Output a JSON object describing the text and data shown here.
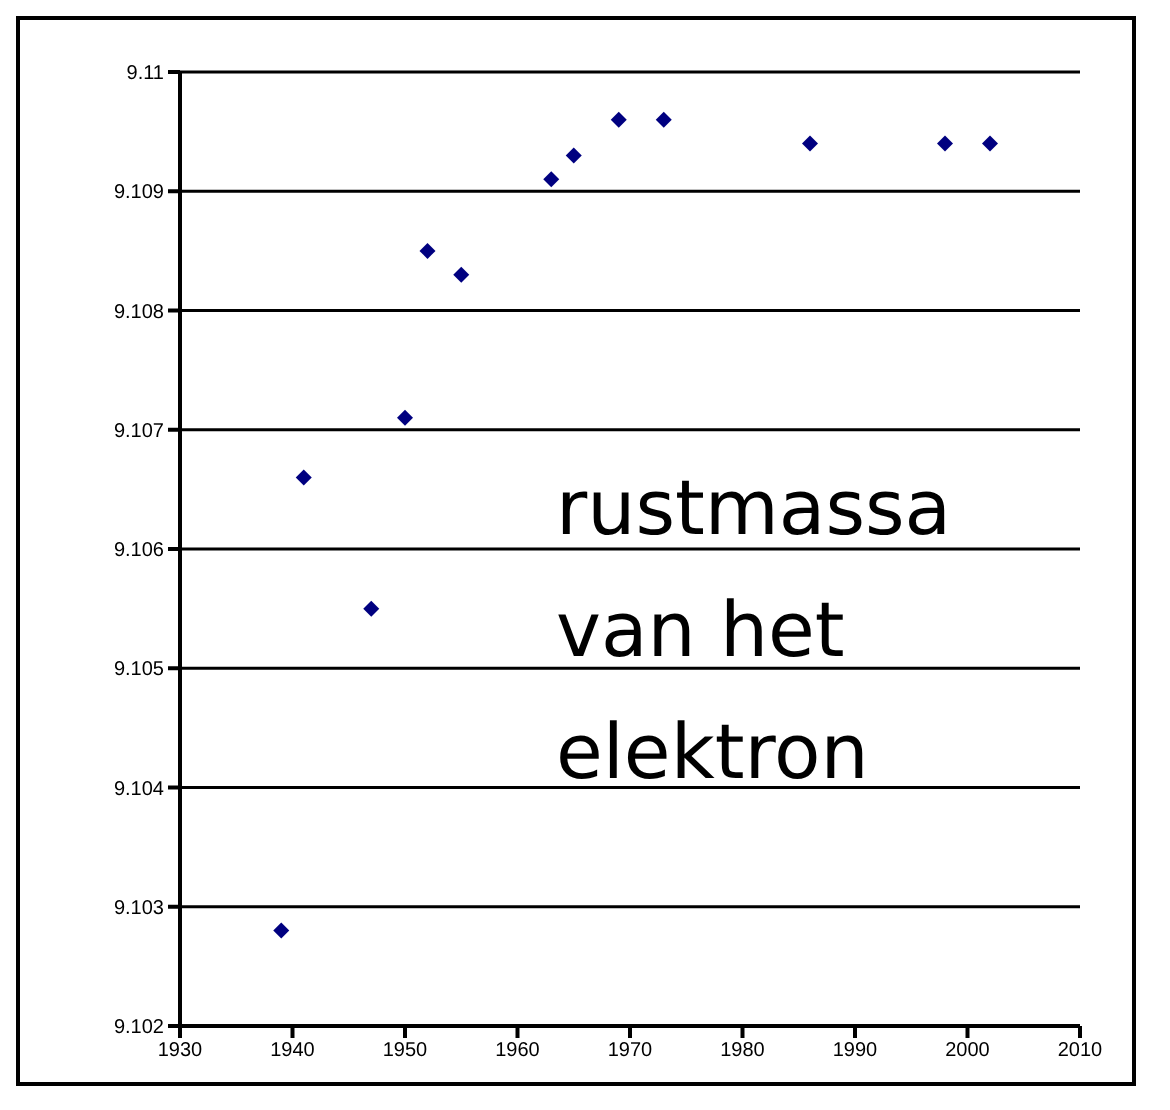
{
  "chart_data": {
    "type": "scatter",
    "x": [
      1939,
      1941,
      1947,
      1950,
      1952,
      1955,
      1963,
      1965,
      1969,
      1973,
      1986,
      1998,
      2002
    ],
    "series": [
      {
        "color": "#000080",
        "values": [
          9.1028,
          9.1066,
          9.1055,
          9.1071,
          9.1085,
          9.1083,
          9.1091,
          9.1093,
          9.1096,
          9.1096,
          9.1094,
          9.1094,
          9.1094
        ]
      }
    ],
    "xlim": [
      1930,
      2010
    ],
    "xticks": [
      1930,
      1940,
      1950,
      1960,
      1970,
      1980,
      1990,
      2000,
      2010
    ],
    "ylim": [
      9.102,
      9.11
    ],
    "yticks": [
      9.102,
      9.103,
      9.104,
      9.105,
      9.106,
      9.107,
      9.108,
      9.109,
      9.11
    ],
    "grid": "y",
    "marker": "diamond",
    "annotations": [
      "rustmassa van het elektron"
    ]
  }
}
